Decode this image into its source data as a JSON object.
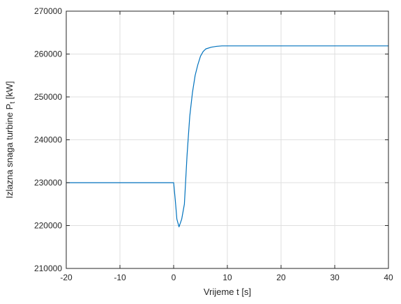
{
  "chart_data": {
    "type": "line",
    "title": "",
    "xlabel": "Vrijeme t [s]",
    "ylabel_main": "Izlazna snaga turbine P",
    "ylabel_sub": "t",
    "ylabel_unit": " [kW]",
    "xlim": [
      -20,
      40
    ],
    "ylim": [
      210000,
      270000
    ],
    "xticks": [
      -20,
      -10,
      0,
      10,
      20,
      30,
      40
    ],
    "yticks": [
      210000,
      220000,
      230000,
      240000,
      250000,
      260000,
      270000
    ],
    "grid": true,
    "line_color": "#0072bd",
    "series": [
      {
        "x": [
          -20,
          -10,
          0,
          0.3,
          0.6,
          1.0,
          1.5,
          2.0,
          2.5,
          3.0,
          3.5,
          4.0,
          4.5,
          5.0,
          5.5,
          6.0,
          7.0,
          8.0,
          9.0,
          10.0,
          20,
          30,
          40
        ],
        "y": [
          230000,
          230000,
          230000,
          226000,
          221500,
          219700,
          221500,
          225000,
          236500,
          245500,
          251000,
          255000,
          257500,
          259500,
          260600,
          261200,
          261600,
          261800,
          261900,
          261900,
          261900,
          261900,
          261900
        ]
      }
    ]
  }
}
